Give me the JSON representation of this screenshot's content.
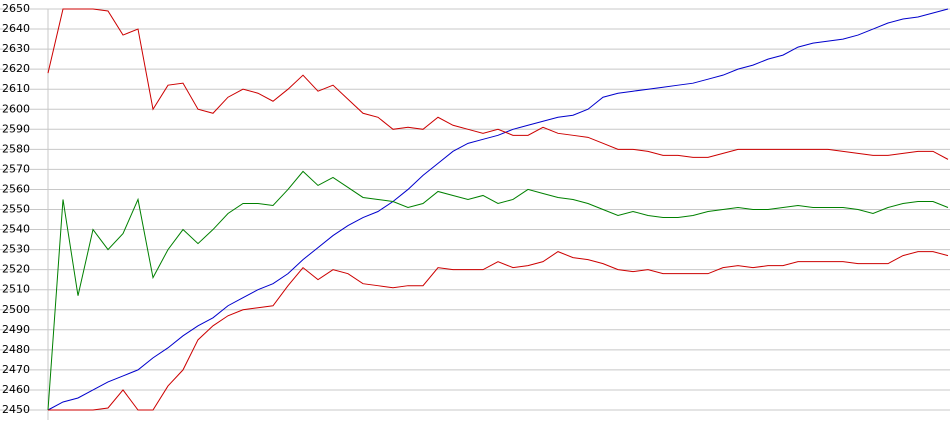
{
  "chart_data": {
    "type": "line",
    "categories": [
      null,
      null,
      null,
      null,
      null,
      null,
      null,
      null,
      null,
      null,
      null,
      null,
      null,
      null,
      null,
      null,
      null,
      null,
      null,
      null,
      null,
      null,
      null,
      null,
      null,
      null,
      null,
      null,
      null,
      null,
      null,
      null,
      null,
      null,
      null,
      null,
      null,
      null,
      null,
      null,
      null,
      null,
      null,
      null,
      null,
      null,
      null,
      null,
      null,
      null,
      null,
      null,
      null,
      null,
      null,
      null,
      null,
      null,
      null,
      null,
      null
    ],
    "ylim": [
      2450,
      2650
    ],
    "yticks": [
      2450,
      2460,
      2470,
      2480,
      2490,
      2500,
      2510,
      2520,
      2530,
      2540,
      2550,
      2560,
      2570,
      2580,
      2590,
      2600,
      2610,
      2620,
      2630,
      2640,
      2650
    ],
    "grid": true,
    "series": [
      {
        "color": "#0000cc",
        "values": [
          2450,
          2454,
          2456,
          2460,
          2464,
          2467,
          2470,
          2476,
          2481,
          2487,
          2492,
          2496,
          2502,
          2506,
          2510,
          2513,
          2518,
          2525,
          2531,
          2537,
          2542,
          2546,
          2549,
          2554,
          2560,
          2567,
          2573,
          2579,
          2583,
          2585,
          2587,
          2590,
          2592,
          2594,
          2596,
          2597,
          2600,
          2606,
          2608,
          2609,
          2610,
          2611,
          2612,
          2613,
          2615,
          2617,
          2620,
          2622,
          2625,
          2627,
          2631,
          2633,
          2634,
          2635,
          2637,
          2640,
          2643,
          2645,
          2646,
          2648,
          2650
        ]
      },
      {
        "color": "#cc0000",
        "values": [
          2618,
          2650,
          2650,
          2650,
          2649,
          2637,
          2640,
          2600,
          2612,
          2613,
          2600,
          2598,
          2606,
          2610,
          2608,
          2604,
          2610,
          2617,
          2609,
          2612,
          2605,
          2598,
          2596,
          2590,
          2591,
          2590,
          2596,
          2592,
          2590,
          2588,
          2590,
          2587,
          2587,
          2591,
          2588,
          2587,
          2586,
          2583,
          2580,
          2580,
          2579,
          2577,
          2577,
          2576,
          2576,
          2578,
          2580,
          2580,
          2580,
          2580,
          2580,
          2580,
          2580,
          2579,
          2578,
          2577,
          2577,
          2578,
          2579,
          2579,
          2575
        ]
      },
      {
        "color": "#008000",
        "values": [
          2450,
          2555,
          2507,
          2540,
          2530,
          2538,
          2555,
          2516,
          2530,
          2540,
          2533,
          2540,
          2548,
          2553,
          2553,
          2552,
          2560,
          2569,
          2562,
          2566,
          2561,
          2556,
          2555,
          2554,
          2551,
          2553,
          2559,
          2557,
          2555,
          2557,
          2553,
          2555,
          2560,
          2558,
          2556,
          2555,
          2553,
          2550,
          2547,
          2549,
          2547,
          2546,
          2546,
          2547,
          2549,
          2550,
          2551,
          2550,
          2550,
          2551,
          2552,
          2551,
          2551,
          2551,
          2550,
          2548,
          2551,
          2553,
          2554,
          2554,
          2551
        ]
      },
      {
        "color": "#cc0000",
        "values": [
          2450,
          2450,
          2450,
          2450,
          2451,
          2460,
          2450,
          2450,
          2462,
          2470,
          2485,
          2492,
          2497,
          2500,
          2501,
          2502,
          2512,
          2521,
          2515,
          2520,
          2518,
          2513,
          2512,
          2511,
          2512,
          2512,
          2521,
          2520,
          2520,
          2520,
          2524,
          2521,
          2522,
          2524,
          2529,
          2526,
          2525,
          2523,
          2520,
          2519,
          2520,
          2518,
          2518,
          2518,
          2518,
          2521,
          2522,
          2521,
          2522,
          2522,
          2524,
          2524,
          2524,
          2524,
          2523,
          2523,
          2523,
          2527,
          2529,
          2529,
          2527
        ]
      }
    ]
  }
}
